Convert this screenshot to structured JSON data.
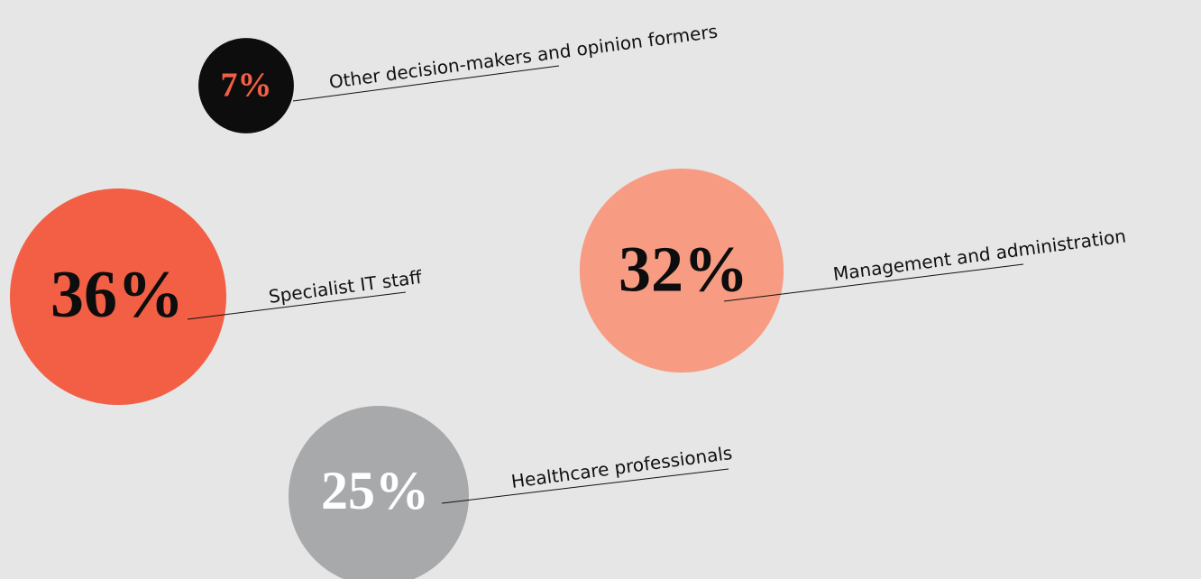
{
  "chart_data": {
    "type": "bubble",
    "categories": [
      "Other decision-makers and opinion formers",
      "Specialist IT staff",
      "Management and administration",
      "Healthcare professionals"
    ],
    "values": [
      7,
      36,
      32,
      25
    ],
    "value_labels": [
      "7%",
      "36%",
      "32%",
      "25%"
    ],
    "colors": [
      "#0d0d0d",
      "#f25f45",
      "#f79c82",
      "#a8a9ab"
    ],
    "label_colors": [
      "#f25f45",
      "#0d0d0d",
      "#0d0d0d",
      "#ffffff"
    ]
  }
}
